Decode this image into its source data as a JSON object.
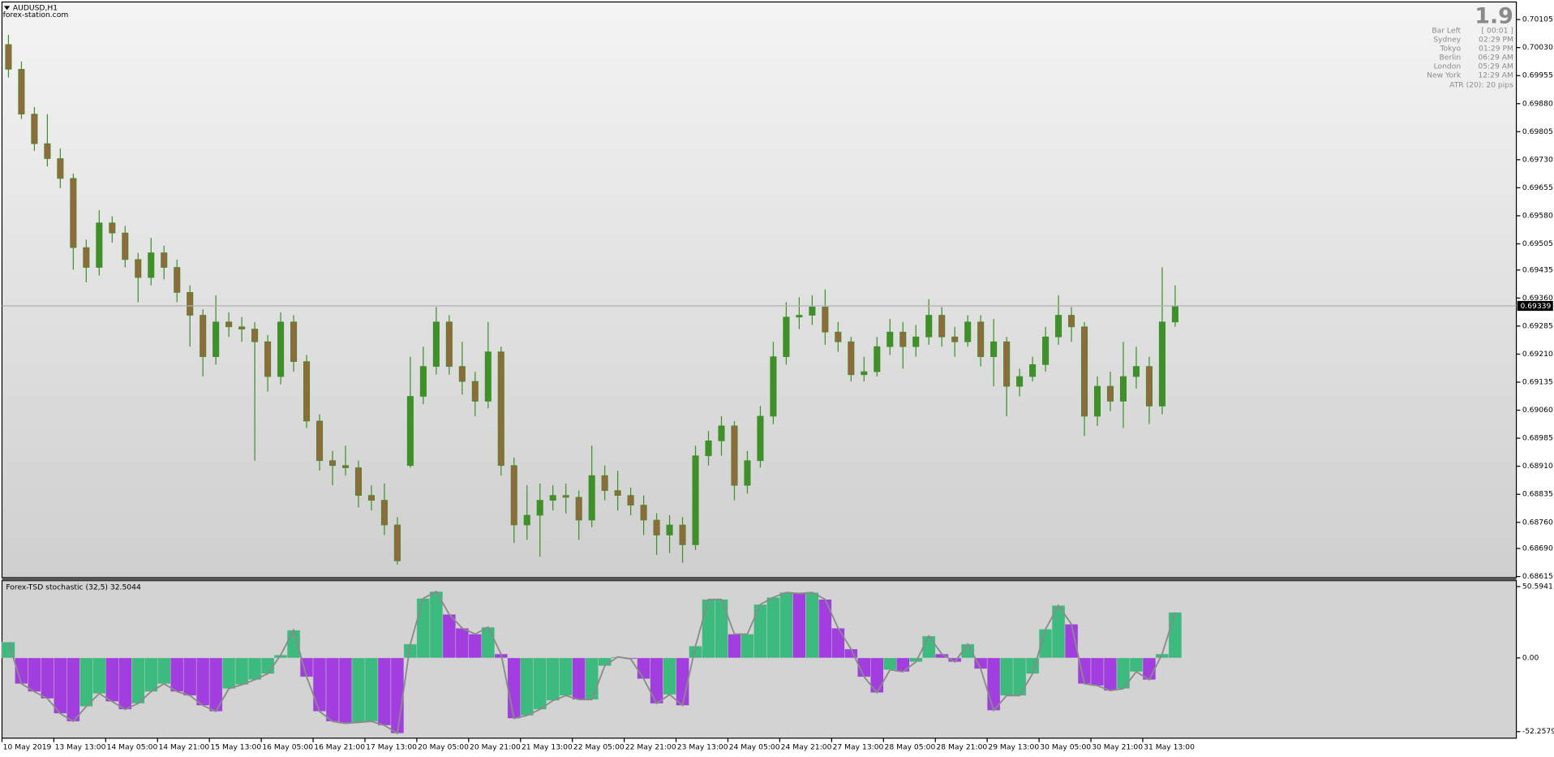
{
  "chart_data": [
    {
      "type": "candlestick",
      "title": "AUDUSD,H1",
      "subtitle": "forex-station.com",
      "categories": [
        "10 May 2019",
        null,
        null,
        null,
        "13 May 13:00",
        null,
        null,
        null,
        "14 May 05:00",
        null,
        null,
        null,
        "14 May 21:00",
        null,
        null,
        null,
        "15 May 13:00",
        null,
        null,
        null,
        "16 May 05:00",
        null,
        null,
        null,
        "16 May 21:00",
        null,
        null,
        null,
        "17 May 13:00",
        null,
        null,
        null,
        "20 May 05:00",
        null,
        null,
        null,
        "20 May 21:00",
        null,
        null,
        null,
        "21 May 13:00",
        null,
        null,
        null,
        "22 May 05:00",
        null,
        null,
        null,
        "22 May 21:00",
        null,
        null,
        null,
        "23 May 13:00",
        null,
        null,
        null,
        "24 May 05:00",
        null,
        null,
        null,
        "24 May 21:00",
        null,
        null,
        null,
        "27 May 13:00",
        null,
        null,
        null,
        "28 May 05:00",
        null,
        null,
        null,
        "28 May 21:00",
        null,
        null,
        null,
        "29 May 13:00",
        null,
        null,
        null,
        "30 May 05:00",
        null,
        null,
        null,
        "30 May 21:00",
        null,
        null,
        null,
        "31 May 13:00",
        null,
        null
      ],
      "open": [
        0.70038,
        0.69972,
        0.69852,
        0.69773,
        0.69733,
        0.6968,
        0.69495,
        0.69442,
        0.69561,
        0.69534,
        0.69463,
        0.69415,
        0.69481,
        0.69442,
        0.69375,
        0.69314,
        0.69203,
        0.69296,
        0.69283,
        0.69277,
        0.69243,
        0.6915,
        0.69296,
        0.6919,
        0.69031,
        0.68925,
        0.68912,
        0.68906,
        0.68832,
        0.68819,
        0.68753,
        0.68912,
        0.69097,
        0.69177,
        0.69296,
        0.69177,
        0.69137,
        0.69084,
        0.69216,
        0.68912,
        0.68753,
        0.68779,
        0.68819,
        0.68832,
        0.68827,
        0.68766,
        0.68885,
        0.68845,
        0.68832,
        0.68806,
        0.68766,
        0.68726,
        0.68753,
        0.687,
        0.68938,
        0.68978,
        0.69018,
        0.68859,
        0.68925,
        0.69044,
        0.69203,
        0.69309,
        0.69314,
        0.69336,
        0.69269,
        0.69243,
        0.69155,
        0.69163,
        0.6923,
        0.69269,
        0.6923,
        0.69256,
        0.69314,
        0.69256,
        0.69243,
        0.69296,
        0.69203,
        0.69243,
        0.69124,
        0.6915,
        0.69182,
        0.69256,
        0.69314,
        0.69283,
        0.69044,
        0.69124,
        0.69084,
        0.6915,
        0.69177,
        0.69071,
        0.69296
      ],
      "high": [
        0.70064,
        0.69993,
        0.69871,
        0.69852,
        0.6976,
        0.69693,
        0.69516,
        0.69595,
        0.69579,
        0.69553,
        0.69481,
        0.69521,
        0.695,
        0.69463,
        0.69394,
        0.6933,
        0.69367,
        0.69322,
        0.69309,
        0.69296,
        0.69261,
        0.69322,
        0.69314,
        0.69208,
        0.69049,
        0.68951,
        0.68965,
        0.68925,
        0.68859,
        0.68864,
        0.68774,
        0.69203,
        0.6923,
        0.69336,
        0.69314,
        0.69243,
        0.69163,
        0.69296,
        0.6923,
        0.68933,
        0.68859,
        0.68864,
        0.68859,
        0.68864,
        0.68845,
        0.68965,
        0.68912,
        0.68898,
        0.68853,
        0.68832,
        0.68784,
        0.68779,
        0.68774,
        0.68965,
        0.69004,
        0.69044,
        0.69031,
        0.68951,
        0.69071,
        0.69243,
        0.69349,
        0.69362,
        0.69367,
        0.69383,
        0.69296,
        0.69256,
        0.69203,
        0.69256,
        0.69304,
        0.69296,
        0.69288,
        0.69357,
        0.69336,
        0.69283,
        0.69314,
        0.69314,
        0.69304,
        0.69256,
        0.69171,
        0.69203,
        0.69283,
        0.69367,
        0.69336,
        0.69296,
        0.6915,
        0.69163,
        0.69243,
        0.6923,
        0.69203,
        0.69442,
        0.69394
      ],
      "low": [
        0.6995,
        0.69839,
        0.69754,
        0.69712,
        0.69654,
        0.69436,
        0.69402,
        0.6942,
        0.69508,
        0.69442,
        0.69349,
        0.69394,
        0.6941,
        0.69349,
        0.6923,
        0.6915,
        0.69182,
        0.69256,
        0.69243,
        0.68925,
        0.6911,
        0.69129,
        0.69163,
        0.69012,
        0.68898,
        0.68859,
        0.68885,
        0.688,
        0.68792,
        0.68726,
        0.68647,
        0.68906,
        0.69076,
        0.69155,
        0.69155,
        0.69102,
        0.69044,
        0.69065,
        0.68885,
        0.68705,
        0.68713,
        0.68668,
        0.68792,
        0.68784,
        0.68713,
        0.68747,
        0.68819,
        0.68792,
        0.68779,
        0.68726,
        0.68673,
        0.68678,
        0.68652,
        0.68686,
        0.68912,
        0.68938,
        0.68819,
        0.68837,
        0.68906,
        0.69023,
        0.69182,
        0.69277,
        0.69288,
        0.69235,
        0.69216,
        0.69137,
        0.69137,
        0.6915,
        0.69208,
        0.69171,
        0.69203,
        0.69235,
        0.6923,
        0.69203,
        0.6923,
        0.69177,
        0.69124,
        0.69044,
        0.69097,
        0.69137,
        0.69163,
        0.69235,
        0.69243,
        0.68991,
        0.69018,
        0.69057,
        0.69012,
        0.69118,
        0.69023,
        0.69049,
        0.69283
      ],
      "close": [
        0.69972,
        0.69852,
        0.69773,
        0.69733,
        0.6968,
        0.69495,
        0.69442,
        0.69561,
        0.69534,
        0.69463,
        0.69415,
        0.69481,
        0.69442,
        0.69375,
        0.69314,
        0.69203,
        0.69296,
        0.69283,
        0.69277,
        0.69243,
        0.6915,
        0.69296,
        0.6919,
        0.69031,
        0.68925,
        0.68912,
        0.68906,
        0.68832,
        0.68819,
        0.68753,
        0.68657,
        0.69097,
        0.69177,
        0.69296,
        0.69177,
        0.69137,
        0.69084,
        0.69216,
        0.68912,
        0.68753,
        0.68779,
        0.68819,
        0.68832,
        0.68827,
        0.68766,
        0.68885,
        0.68845,
        0.68832,
        0.68806,
        0.68766,
        0.68726,
        0.68753,
        0.687,
        0.68938,
        0.68978,
        0.69018,
        0.68859,
        0.68925,
        0.69044,
        0.69203,
        0.69309,
        0.69314,
        0.69336,
        0.69269,
        0.69243,
        0.69155,
        0.69163,
        0.6923,
        0.69269,
        0.6923,
        0.69256,
        0.69314,
        0.69256,
        0.69243,
        0.69296,
        0.69203,
        0.69243,
        0.69124,
        0.6915,
        0.69182,
        0.69256,
        0.69314,
        0.69283,
        0.69044,
        0.69124,
        0.69084,
        0.6915,
        0.69177,
        0.69071,
        0.69296,
        0.69339
      ],
      "up_color": "#3f8f2a",
      "down_color": "#8f6a3a",
      "ylim": [
        0.68612,
        0.70152
      ],
      "yticks": [
        0.70105,
        {
          "value": 0.7003,
          "label": "0.70030"
        },
        0.69955,
        {
          "value": 0.6988,
          "label": "0.69880"
        },
        0.69805,
        {
          "value": 0.6973,
          "label": "0.69730"
        },
        0.69655,
        {
          "value": 0.6958,
          "label": "0.69580"
        },
        0.69505,
        0.69435,
        {
          "value": 0.6936,
          "label": "0.69360"
        },
        0.69285,
        {
          "value": 0.6921,
          "label": "0.69210"
        },
        0.69135,
        {
          "value": 0.6906,
          "label": "0.69060"
        },
        0.68985,
        {
          "value": 0.6891,
          "label": "0.68910"
        },
        0.68835,
        {
          "value": 0.6876,
          "label": "0.68760"
        },
        {
          "value": 0.6869,
          "label": "0.68690"
        },
        0.68615
      ],
      "current_price": 0.69339,
      "info_panel": {
        "spread": "1.9",
        "rows": [
          [
            "Bar Left",
            "[ 00:01 ]"
          ],
          [
            "Sydney",
            "02:29 PM"
          ],
          [
            "Tokyo",
            "01:29 PM"
          ],
          [
            "Berlin",
            "06:29 AM"
          ],
          [
            "London",
            "05:29 AM"
          ],
          [
            "New York",
            "12:29 AM"
          ]
        ],
        "atr": "ATR (20): 20 pips"
      }
    },
    {
      "type": "oscillator",
      "title": "Forex-TSD stochastic (32,5) 32.5044",
      "values": [
        11.2,
        -18.3,
        -23.9,
        -28.8,
        -39.4,
        -45.0,
        -34.4,
        -25.3,
        -30.9,
        -36.5,
        -32.3,
        -23.9,
        -18.3,
        -23.9,
        -26.7,
        -33.7,
        -37.9,
        -21.8,
        -19.0,
        -15.5,
        -11.2,
        2.1,
        19.7,
        -13.4,
        -37.9,
        -45.0,
        -46.4,
        -45.7,
        -45.0,
        -47.8,
        -53.4,
        9.8,
        42.2,
        47.1,
        30.9,
        21.1,
        16.9,
        21.8,
        2.8,
        -42.9,
        -40.8,
        -36.5,
        -30.2,
        -26.7,
        -29.5,
        -29.5,
        -5.6,
        0.7,
        -0.7,
        -14.8,
        -32.3,
        -26.0,
        -33.7,
        8.4,
        41.5,
        41.5,
        16.9,
        16.9,
        37.9,
        42.9,
        46.4,
        45.7,
        46.4,
        41.5,
        21.1,
        6.3,
        -13.4,
        -24.6,
        -8.4,
        -9.8,
        -2.8,
        15.5,
        2.8,
        -2.8,
        9.8,
        -7.7,
        -37.2,
        -26.7,
        -26.7,
        -11.2,
        20.4,
        37.2,
        23.9,
        -18.3,
        -19.7,
        -23.2,
        -21.8,
        -9.8,
        -15.5,
        2.8,
        32.3
      ],
      "up_color": "#3dbb7e",
      "down_color": "#a23ee0",
      "line_color": "#8a8a8a",
      "ylim": [
        -56.9,
        54.1
      ],
      "yticks": [
        50.5941,
        {
          "value": 0,
          "label": "0.00"
        },
        -52.2579
      ]
    }
  ]
}
